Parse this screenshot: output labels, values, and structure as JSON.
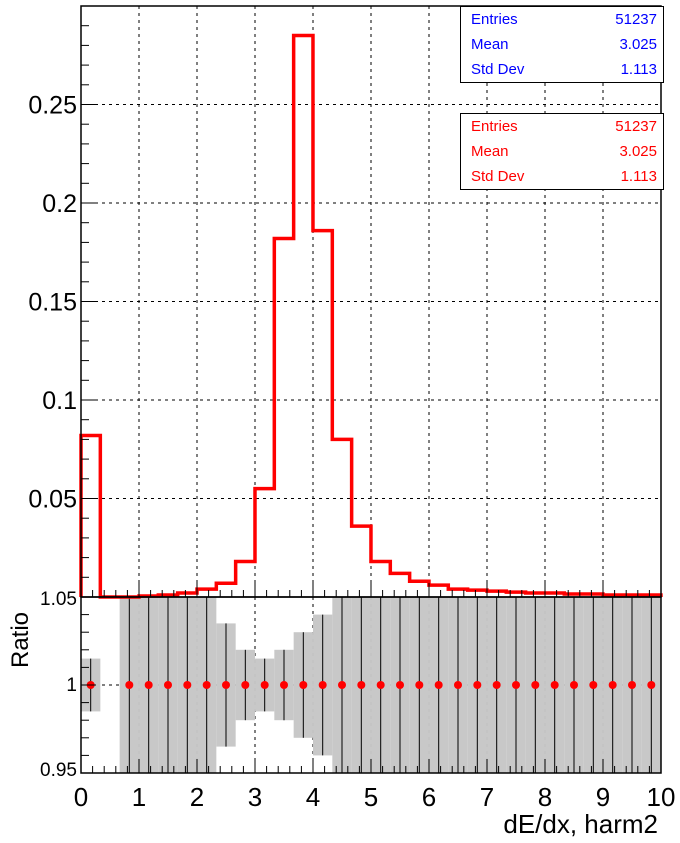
{
  "chart_data": [
    {
      "type": "line",
      "subtype": "step-histogram",
      "title": "",
      "xlabel": "",
      "ylabel": "",
      "xlim": [
        0,
        10
      ],
      "ylim": [
        0,
        0.3
      ],
      "grid": true,
      "bin_width": 0.3333,
      "color": "#ff0000",
      "bin_values": [
        0.082,
        0.0,
        0.0,
        0.0005,
        0.001,
        0.002,
        0.004,
        0.007,
        0.018,
        0.055,
        0.182,
        0.285,
        0.186,
        0.08,
        0.036,
        0.018,
        0.012,
        0.008,
        0.006,
        0.004,
        0.0035,
        0.003,
        0.0025,
        0.002,
        0.002,
        0.0015,
        0.0015,
        0.001,
        0.001,
        0.001
      ],
      "y_ticks": [
        "0.05",
        "0.1",
        "0.15",
        "0.2",
        "0.25"
      ],
      "y_tick_values": [
        0.05,
        0.1,
        0.15,
        0.2,
        0.25
      ]
    },
    {
      "type": "scatter",
      "subtype": "ratio-with-error-bands",
      "ylabel": "Ratio",
      "xlabel": "dE/dx, harm2",
      "xlim": [
        0,
        10
      ],
      "ylim": [
        0.95,
        1.05
      ],
      "grid": true,
      "y_ticks": [
        "0.95",
        "1",
        "1.05"
      ],
      "y_tick_values": [
        0.95,
        1.0,
        1.05
      ],
      "x_ticks": [
        "0",
        "1",
        "2",
        "3",
        "4",
        "5",
        "6",
        "7",
        "8",
        "9",
        "10"
      ],
      "x_tick_values": [
        0,
        1,
        2,
        3,
        4,
        5,
        6,
        7,
        8,
        9,
        10
      ],
      "point_color": "#ff0000",
      "band_color": "#c8c8c8",
      "points": [
        {
          "x": 0.167,
          "y": 1.0,
          "err": 0.015
        },
        {
          "x": 0.833,
          "y": 1.0,
          "err": 0.06
        },
        {
          "x": 1.167,
          "y": 1.0,
          "err": 0.06
        },
        {
          "x": 1.5,
          "y": 1.0,
          "err": 0.06
        },
        {
          "x": 1.833,
          "y": 1.0,
          "err": 0.06
        },
        {
          "x": 2.167,
          "y": 1.0,
          "err": 0.05
        },
        {
          "x": 2.5,
          "y": 1.0,
          "err": 0.035
        },
        {
          "x": 2.833,
          "y": 1.0,
          "err": 0.02
        },
        {
          "x": 3.167,
          "y": 1.0,
          "err": 0.015
        },
        {
          "x": 3.5,
          "y": 1.0,
          "err": 0.02
        },
        {
          "x": 3.833,
          "y": 1.0,
          "err": 0.03
        },
        {
          "x": 4.167,
          "y": 1.0,
          "err": 0.04
        },
        {
          "x": 4.5,
          "y": 1.0,
          "err": 0.06
        },
        {
          "x": 4.833,
          "y": 1.0,
          "err": 0.06
        },
        {
          "x": 5.167,
          "y": 1.0,
          "err": 0.06
        },
        {
          "x": 5.5,
          "y": 1.0,
          "err": 0.06
        },
        {
          "x": 5.833,
          "y": 1.0,
          "err": 0.06
        },
        {
          "x": 6.167,
          "y": 1.0,
          "err": 0.06
        },
        {
          "x": 6.5,
          "y": 1.0,
          "err": 0.06
        },
        {
          "x": 6.833,
          "y": 1.0,
          "err": 0.06
        },
        {
          "x": 7.167,
          "y": 1.0,
          "err": 0.06
        },
        {
          "x": 7.5,
          "y": 1.0,
          "err": 0.06
        },
        {
          "x": 7.833,
          "y": 1.0,
          "err": 0.06
        },
        {
          "x": 8.167,
          "y": 1.0,
          "err": 0.06
        },
        {
          "x": 8.5,
          "y": 1.0,
          "err": 0.06
        },
        {
          "x": 8.833,
          "y": 1.0,
          "err": 0.06
        },
        {
          "x": 9.167,
          "y": 1.0,
          "err": 0.06
        },
        {
          "x": 9.5,
          "y": 1.0,
          "err": 0.06
        },
        {
          "x": 9.833,
          "y": 1.0,
          "err": 0.06
        }
      ]
    }
  ],
  "stats_boxes": [
    {
      "color": "#0000ff",
      "rows": [
        {
          "label": "Entries",
          "value": "51237"
        },
        {
          "label": "Mean",
          "value": "3.025"
        },
        {
          "label": "Std Dev",
          "value": "1.113"
        }
      ]
    },
    {
      "color": "#ff0000",
      "rows": [
        {
          "label": "Entries",
          "value": "51237"
        },
        {
          "label": "Mean",
          "value": "3.025"
        },
        {
          "label": "Std Dev",
          "value": "1.113"
        }
      ]
    }
  ]
}
